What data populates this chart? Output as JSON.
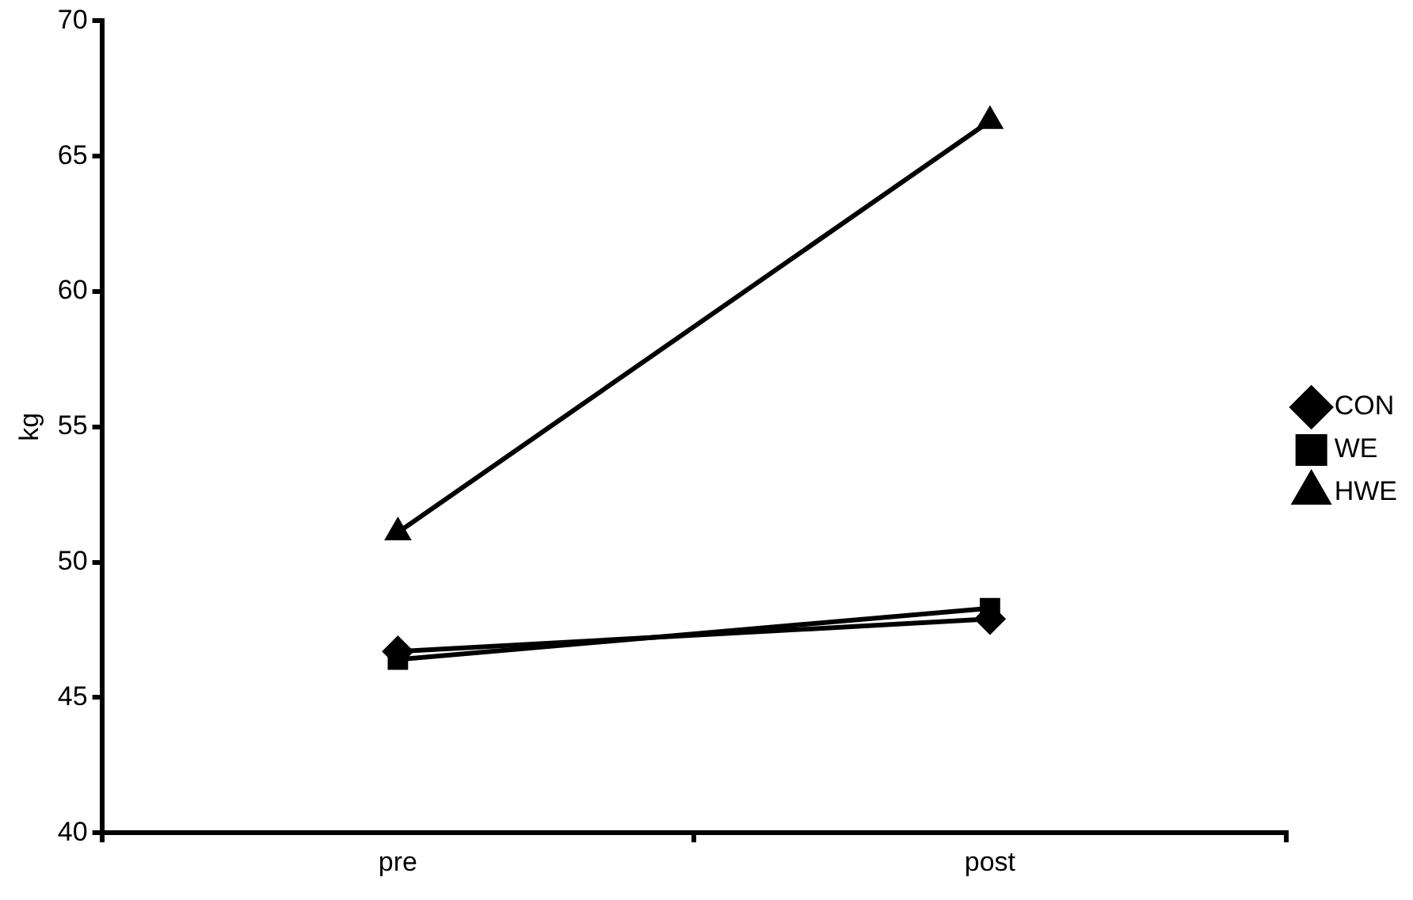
{
  "chart_data": {
    "type": "line",
    "ylabel": "kg",
    "categories": [
      "pre",
      "post"
    ],
    "series": [
      {
        "name": "CON",
        "color": "#000000",
        "values": [
          46.7,
          47.9
        ],
        "marker": "diamond"
      },
      {
        "name": "WE",
        "color": "#000000",
        "values": [
          46.4,
          48.3
        ],
        "marker": "square"
      },
      {
        "name": "HWE",
        "color": "#000000",
        "values": [
          51.1,
          66.3
        ],
        "marker": "triangle"
      }
    ],
    "ylim": [
      40,
      70
    ],
    "yticks": [
      40,
      45,
      50,
      55,
      60,
      65,
      70
    ],
    "grid": false,
    "legend": "right",
    "line_style": "solid"
  }
}
